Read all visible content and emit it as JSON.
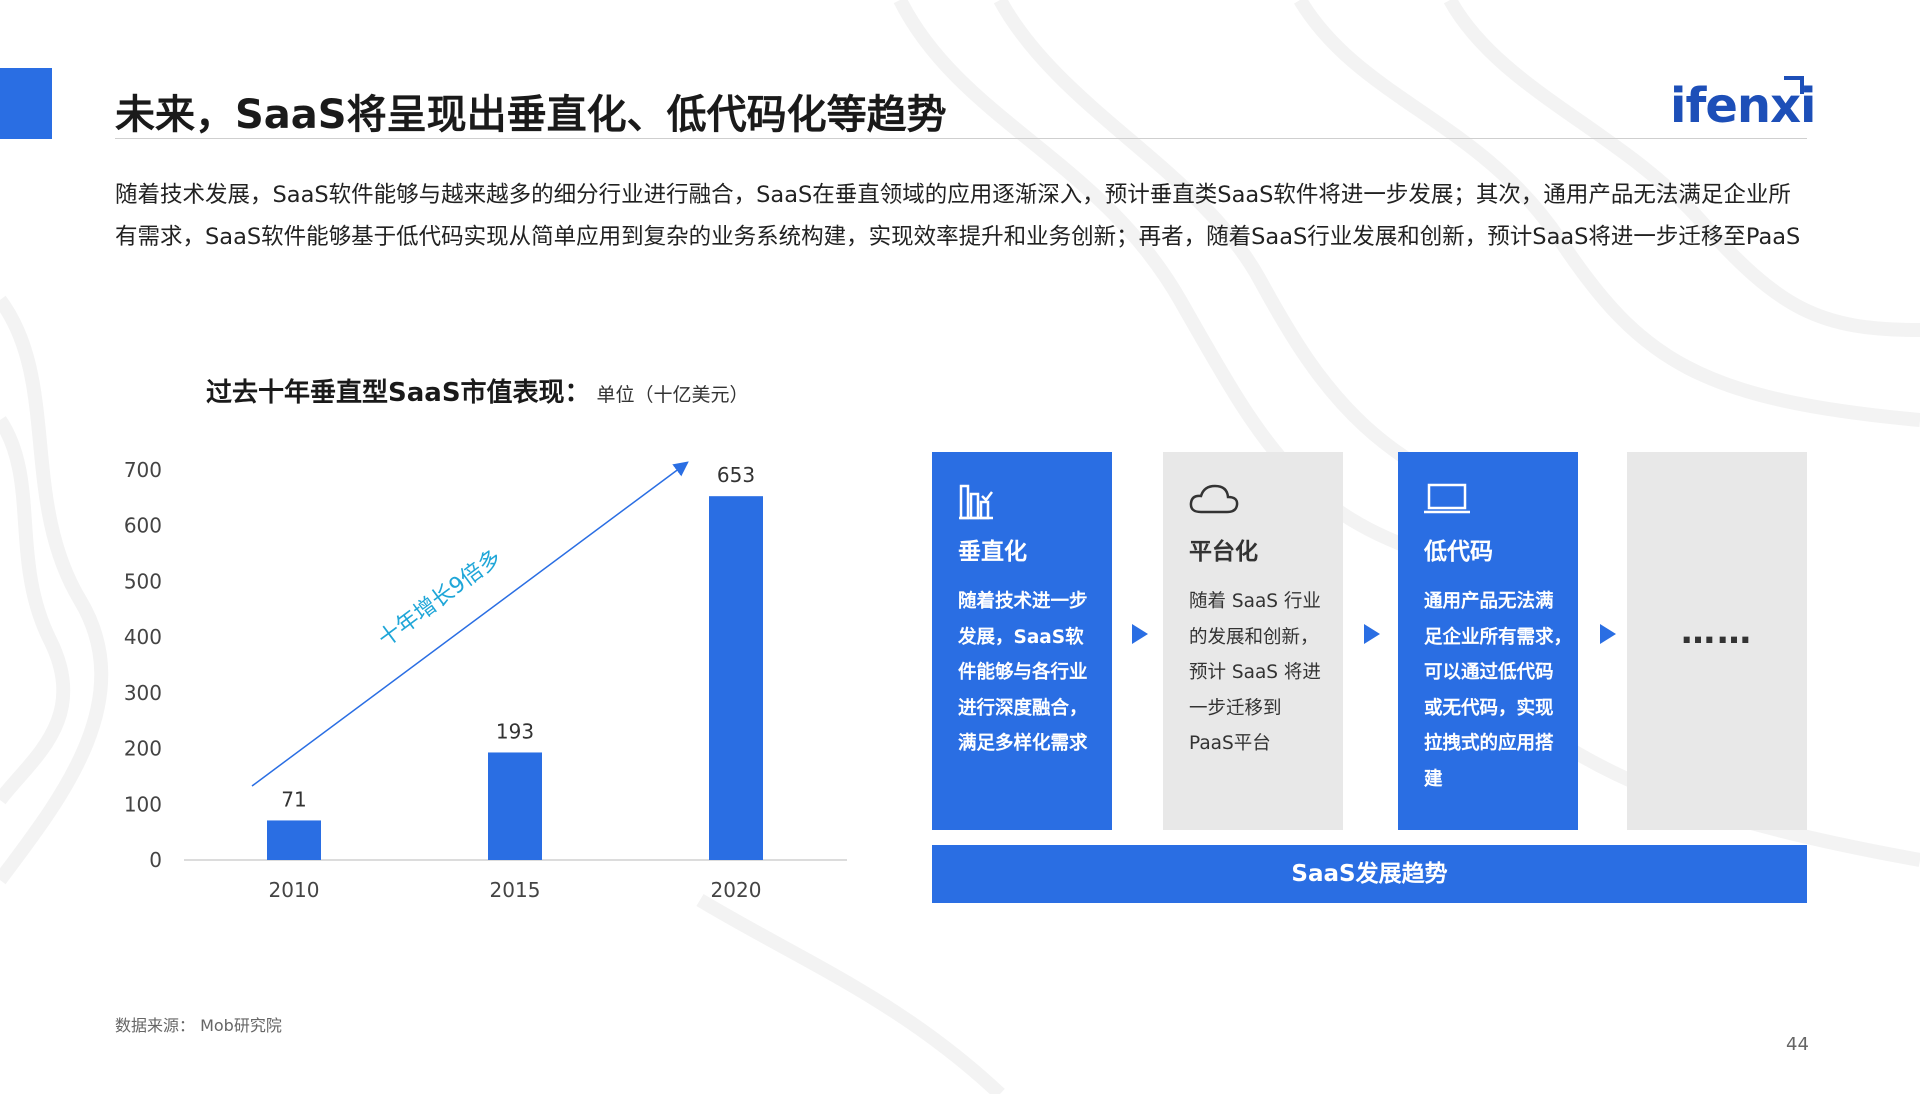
{
  "header": {
    "title": "未来，SaaS将呈现出垂直化、低代码化等趋势",
    "logo_text": "ifenxi"
  },
  "intro": {
    "text": "随着技术发展，SaaS软件能够与越来越多的细分行业进行融合，SaaS在垂直领域的应用逐渐深入，预计垂直类SaaS软件将进一步发展；其次，通用产品无法满足企业所有需求，SaaS软件能够基于低代码实现从简单应用到复杂的业务系统构建，实现效率提升和业务创新；再者，随着SaaS行业发展和创新，预计SaaS将进一步迁移至PaaS"
  },
  "chart_data": {
    "type": "bar",
    "title": "过去十年垂直型SaaS市值表现：",
    "unit": "单位（十亿美元）",
    "categories": [
      "2010",
      "2015",
      "2020"
    ],
    "values": [
      71,
      193,
      653
    ],
    "ylim": [
      0,
      700
    ],
    "yticks": [
      "0",
      "100",
      "200",
      "300",
      "400",
      "500",
      "600",
      "700"
    ],
    "annotation": "十年增长9倍多",
    "bar_color": "#2a6ee3",
    "annotation_color": "#1fa6d8",
    "grid": false
  },
  "trends": {
    "cards": [
      {
        "title": "垂直化",
        "icon": "bar-chart-icon",
        "style": "blue",
        "lines": [
          "随着技术进一步",
          "发展，SaaS软",
          "件能够与各行业",
          "进行深度融合，",
          "满足多样化需求"
        ]
      },
      {
        "title": "平台化",
        "icon": "cloud-icon",
        "style": "gray",
        "lines": [
          "随着 SaaS 行业",
          "的发展和创新，",
          "预计 SaaS 将进",
          "一步迁移到",
          "PaaS平台"
        ]
      },
      {
        "title": "低代码",
        "icon": "laptop-icon",
        "style": "blue",
        "lines": [
          "通用产品无法满",
          "足企业所有需求，",
          "可以通过低代码",
          "或无代码，实现",
          "拉拽式的应用搭",
          "建"
        ]
      },
      {
        "ellipsis": "……",
        "style": "gray"
      }
    ],
    "bar_label": "SaaS发展趋势"
  },
  "footer": {
    "source": "数据来源：  Mob研究院",
    "page_number": "44"
  }
}
